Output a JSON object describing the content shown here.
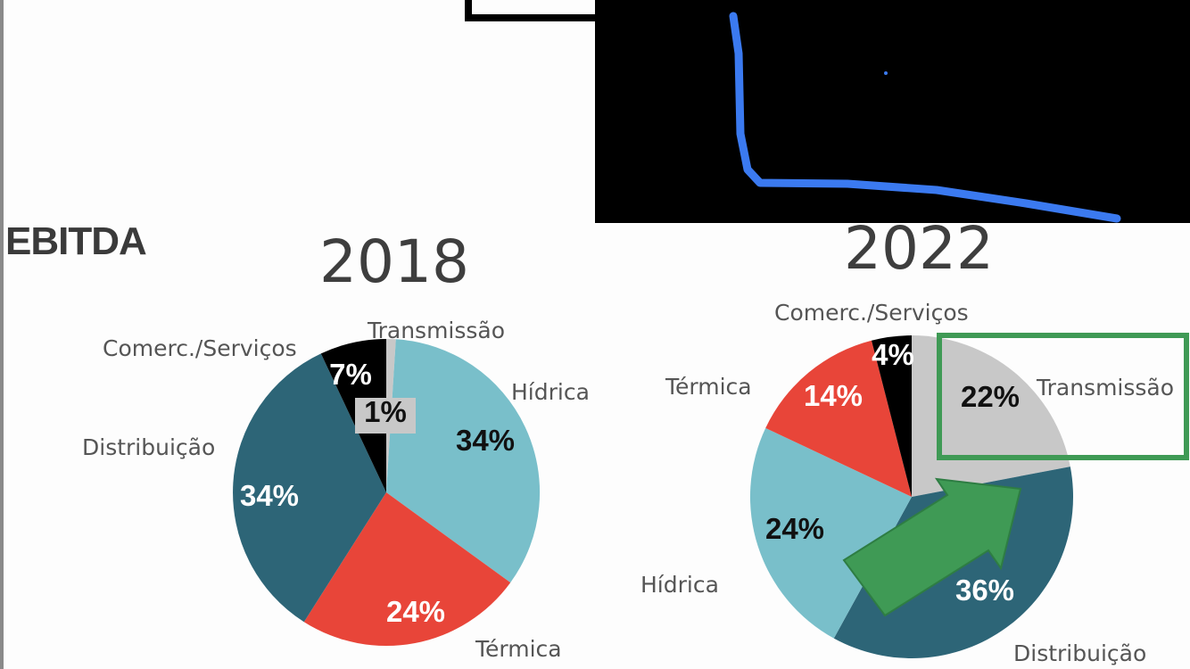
{
  "heading": "EBITDA",
  "chart_data": [
    {
      "type": "pie",
      "title": "2018",
      "slices": [
        {
          "name": "Transmissão",
          "value": 1,
          "label": "1%",
          "color": "#c8c8c8",
          "label_color": "#111111"
        },
        {
          "name": "Hídrica",
          "value": 34,
          "label": "34%",
          "color": "#79bfca",
          "label_color": "#111111"
        },
        {
          "name": "Térmica",
          "value": 24,
          "label": "24%",
          "color": "#e84539",
          "label_color": "#ffffff"
        },
        {
          "name": "Distribuição",
          "value": 34,
          "label": "34%",
          "color": "#2d6577",
          "label_color": "#ffffff"
        },
        {
          "name": "Comerc./Serviços",
          "value": 7,
          "label": "7%",
          "color": "#000000",
          "label_color": "#ffffff"
        }
      ]
    },
    {
      "type": "pie",
      "title": "2022",
      "slices": [
        {
          "name": "Transmissão",
          "value": 22,
          "label": "22%",
          "color": "#c8c8c8",
          "label_color": "#111111"
        },
        {
          "name": "Distribuição",
          "value": 36,
          "label": "36%",
          "color": "#2d6577",
          "label_color": "#ffffff"
        },
        {
          "name": "Hídrica",
          "value": 24,
          "label": "24%",
          "color": "#79bfca",
          "label_color": "#111111"
        },
        {
          "name": "Térmica",
          "value": 14,
          "label": "14%",
          "color": "#e84539",
          "label_color": "#ffffff"
        },
        {
          "name": "Comerc./Serviços",
          "value": 4,
          "label": "4%",
          "color": "#000000",
          "label_color": "#ffffff"
        }
      ]
    }
  ],
  "annotations": {
    "highlight_box_color": "#3f9a55",
    "arrow_color": "#3f9a55",
    "pen_stroke_color": "#3b7af0"
  }
}
